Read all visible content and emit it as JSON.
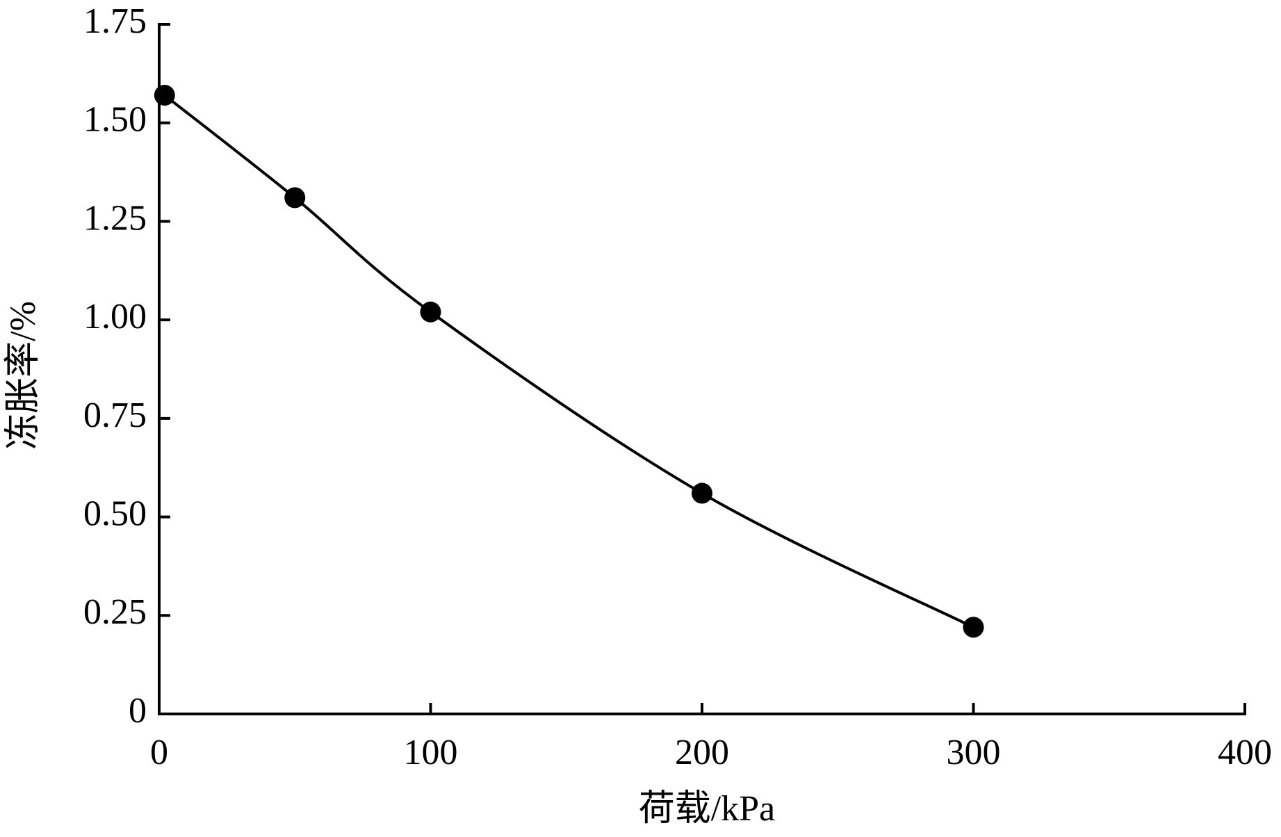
{
  "chart_data": {
    "type": "line",
    "x_label": "荷载/kPa",
    "y_label": "冻胀率/%",
    "x": [
      2,
      50,
      100,
      200,
      300
    ],
    "series": [
      {
        "color": "#000000",
        "values": [
          1.57,
          1.31,
          1.02,
          0.56,
          0.22
        ]
      }
    ],
    "xlim": [
      0,
      400
    ],
    "xticks": [
      0,
      100,
      200,
      300,
      400
    ],
    "ylim": [
      0,
      1.75
    ],
    "yticks": [
      0,
      0.25,
      {
        "value": 0.5,
        "label": "0.50"
      },
      0.75,
      {
        "value": 1,
        "label": "1.00"
      },
      1.25,
      {
        "value": 1.5,
        "label": "1.50"
      },
      1.75
    ],
    "grid": false,
    "smooth": true,
    "markers": true
  }
}
